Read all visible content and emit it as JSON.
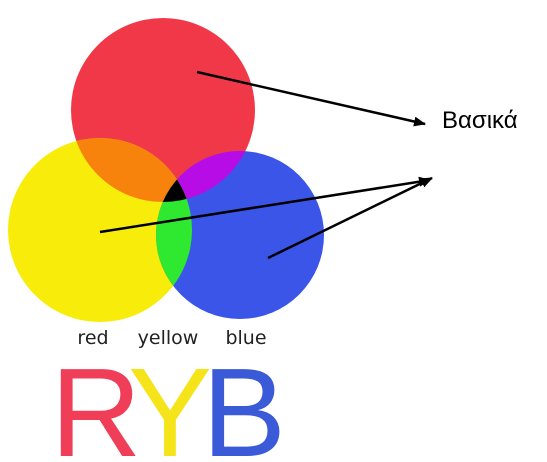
{
  "label": "Βασικά",
  "color_names": [
    "red",
    "yellow",
    "blue"
  ],
  "letters": [
    "R",
    "Y",
    "B"
  ]
}
